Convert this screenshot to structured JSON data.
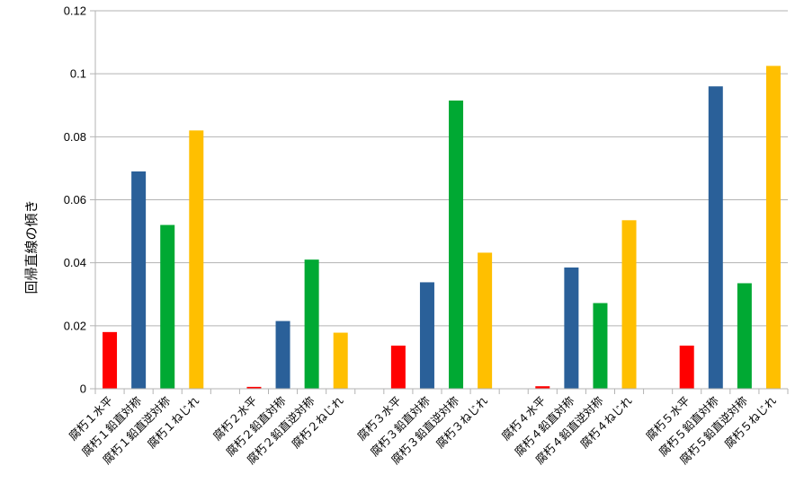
{
  "chart_data": {
    "type": "bar",
    "ylabel": "回帰直線の傾き",
    "ylim": [
      0,
      0.12
    ],
    "yticks": [
      "0",
      "0.02",
      "0.04",
      "0.06",
      "0.08",
      "0.1",
      "0.12"
    ],
    "grid": true,
    "categories": [
      "腐朽１水平",
      "腐朽１鉛直対称",
      "腐朽１鉛直逆対称",
      "腐朽１ねじれ",
      "",
      "腐朽２水平",
      "腐朽２鉛直対称",
      "腐朽２鉛直逆対称",
      "腐朽２ねじれ",
      "",
      "腐朽３水平",
      "腐朽３鉛直対称",
      "腐朽３鉛直逆対称",
      "腐朽３ねじれ",
      "",
      "腐朽４水平",
      "腐朽４鉛直対称",
      "腐朽４鉛直逆対称",
      "腐朽４ねじれ",
      "",
      "腐朽５水平",
      "腐朽５鉛直対称",
      "腐朽５鉛直逆対称",
      "腐朽５ねじれ"
    ],
    "values": [
      0.018,
      0.069,
      0.052,
      0.082,
      null,
      0.0006,
      0.0215,
      0.041,
      0.0178,
      null,
      0.0137,
      0.0338,
      0.0915,
      0.0432,
      null,
      0.0008,
      0.0385,
      0.0272,
      0.0535,
      null,
      0.0137,
      0.096,
      0.0335,
      0.1025
    ],
    "bar_colors": [
      "#ff0000",
      "#2a6099",
      "#00a933",
      "#ffbf00",
      "",
      "#ff0000",
      "#2a6099",
      "#00a933",
      "#ffbf00",
      "",
      "#ff0000",
      "#2a6099",
      "#00a933",
      "#ffbf00",
      "",
      "#ff0000",
      "#2a6099",
      "#00a933",
      "#ffbf00",
      "",
      "#ff0000",
      "#2a6099",
      "#00a933",
      "#ffbf00"
    ],
    "grid_color": "#b3b3b3",
    "axis_color": "#b3b3b3"
  }
}
